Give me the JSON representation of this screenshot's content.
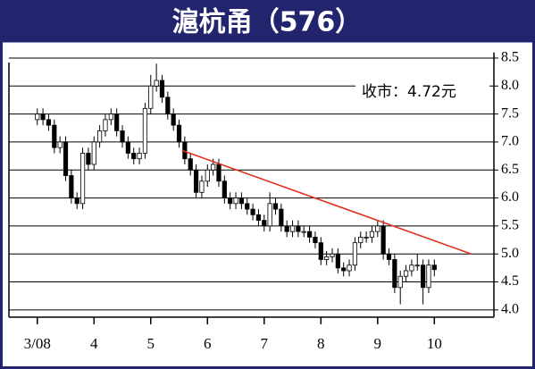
{
  "chart_data": {
    "type": "candlestick",
    "title": "滬杭甬（576）",
    "annotation": "收市：4.72元",
    "x": [
      3,
      3.1,
      3.2,
      3.3,
      3.4,
      3.5,
      3.6,
      3.7,
      3.8,
      3.9,
      4,
      4.1,
      4.2,
      4.3,
      4.4,
      4.5,
      4.6,
      4.7,
      4.8,
      4.9,
      5,
      5.1,
      5.2,
      5.3,
      5.4,
      5.5,
      5.6,
      5.7,
      5.8,
      5.9,
      6,
      6.1,
      6.2,
      6.3,
      6.4,
      6.5,
      6.6,
      6.7,
      6.8,
      6.9,
      7,
      7.1,
      7.2,
      7.3,
      7.4,
      7.5,
      7.6,
      7.7,
      7.8,
      7.9,
      8,
      8.1,
      8.2,
      8.3,
      8.4,
      8.5,
      8.6,
      8.7,
      8.8,
      8.9,
      9,
      9.1,
      9.2,
      9.3,
      9.4,
      9.5,
      9.6,
      9.7,
      9.8,
      9.9,
      10
    ],
    "ohlc": [
      [
        7.4,
        7.6,
        7.3,
        7.5
      ],
      [
        7.5,
        7.6,
        7.3,
        7.4
      ],
      [
        7.4,
        7.5,
        7.2,
        7.3
      ],
      [
        7.3,
        7.4,
        6.8,
        6.9
      ],
      [
        6.9,
        7.1,
        6.8,
        7.0
      ],
      [
        7.0,
        7.1,
        6.3,
        6.4
      ],
      [
        6.4,
        6.5,
        5.9,
        6.0
      ],
      [
        6.0,
        6.1,
        5.8,
        5.9
      ],
      [
        5.9,
        6.9,
        5.8,
        6.8
      ],
      [
        6.8,
        6.9,
        6.5,
        6.6
      ],
      [
        6.6,
        7.1,
        6.5,
        7.0
      ],
      [
        7.0,
        7.3,
        6.9,
        7.2
      ],
      [
        7.2,
        7.5,
        7.1,
        7.4
      ],
      [
        7.4,
        7.6,
        7.3,
        7.5
      ],
      [
        7.5,
        7.6,
        7.1,
        7.2
      ],
      [
        7.2,
        7.3,
        6.9,
        7.0
      ],
      [
        7.0,
        7.1,
        6.7,
        6.8
      ],
      [
        6.8,
        6.9,
        6.6,
        6.7
      ],
      [
        6.7,
        6.9,
        6.6,
        6.8
      ],
      [
        6.8,
        7.7,
        6.7,
        7.6
      ],
      [
        7.6,
        8.2,
        7.5,
        8.0
      ],
      [
        8.0,
        8.4,
        7.9,
        8.1
      ],
      [
        8.1,
        8.2,
        7.7,
        7.8
      ],
      [
        7.8,
        7.9,
        7.4,
        7.5
      ],
      [
        7.5,
        7.6,
        7.2,
        7.3
      ],
      [
        7.3,
        7.4,
        6.9,
        7.0
      ],
      [
        7.0,
        7.1,
        6.6,
        6.7
      ],
      [
        6.7,
        6.8,
        6.4,
        6.5
      ],
      [
        6.5,
        6.6,
        6.0,
        6.1
      ],
      [
        6.1,
        6.4,
        6.0,
        6.3
      ],
      [
        6.3,
        6.6,
        6.2,
        6.5
      ],
      [
        6.5,
        6.7,
        6.4,
        6.6
      ],
      [
        6.6,
        6.7,
        6.2,
        6.3
      ],
      [
        6.3,
        6.4,
        5.9,
        6.0
      ],
      [
        6.0,
        6.1,
        5.8,
        5.9
      ],
      [
        5.9,
        6.1,
        5.8,
        6.0
      ],
      [
        6.0,
        6.1,
        5.8,
        5.9
      ],
      [
        5.9,
        6.0,
        5.7,
        5.8
      ],
      [
        5.8,
        5.9,
        5.6,
        5.7
      ],
      [
        5.7,
        5.8,
        5.5,
        5.6
      ],
      [
        5.6,
        5.7,
        5.4,
        5.5
      ],
      [
        5.5,
        6.1,
        5.4,
        5.9
      ],
      [
        5.9,
        6.0,
        5.7,
        5.8
      ],
      [
        5.8,
        5.9,
        5.4,
        5.5
      ],
      [
        5.5,
        5.6,
        5.3,
        5.4
      ],
      [
        5.4,
        5.6,
        5.3,
        5.5
      ],
      [
        5.5,
        5.6,
        5.3,
        5.4
      ],
      [
        5.4,
        5.5,
        5.3,
        5.4
      ],
      [
        5.4,
        5.5,
        5.2,
        5.3
      ],
      [
        5.3,
        5.4,
        5.1,
        5.2
      ],
      [
        5.2,
        5.3,
        4.8,
        4.9
      ],
      [
        4.9,
        5.05,
        4.8,
        4.95
      ],
      [
        4.95,
        5.1,
        4.85,
        5.0
      ],
      [
        5.0,
        5.1,
        4.65,
        4.75
      ],
      [
        4.75,
        4.85,
        4.6,
        4.7
      ],
      [
        4.7,
        4.9,
        4.6,
        4.8
      ],
      [
        4.8,
        5.3,
        4.7,
        5.2
      ],
      [
        5.2,
        5.4,
        5.1,
        5.3
      ],
      [
        5.3,
        5.4,
        5.2,
        5.3
      ],
      [
        5.3,
        5.5,
        5.2,
        5.4
      ],
      [
        5.4,
        5.6,
        5.3,
        5.5
      ],
      [
        5.5,
        5.6,
        4.9,
        5.0
      ],
      [
        5.0,
        5.1,
        4.8,
        4.9
      ],
      [
        4.9,
        5.0,
        4.3,
        4.4
      ],
      [
        4.4,
        4.7,
        4.1,
        4.6
      ],
      [
        4.6,
        4.8,
        4.5,
        4.7
      ],
      [
        4.7,
        4.9,
        4.6,
        4.8
      ],
      [
        4.8,
        5.0,
        4.7,
        4.8
      ],
      [
        4.8,
        4.9,
        4.1,
        4.4
      ],
      [
        4.4,
        4.9,
        4.3,
        4.8
      ],
      [
        4.8,
        4.9,
        4.6,
        4.72
      ]
    ],
    "up_color": "#ffffff",
    "down_color": "#000000",
    "trendline": {
      "color": "#e0301e",
      "x": [
        5.55,
        10.65
      ],
      "y": [
        6.85,
        5.0
      ]
    },
    "xlim": [
      2.5,
      11.05
    ],
    "xticks": [
      {
        "value": 3,
        "label": "3/08"
      },
      4,
      5,
      6,
      7,
      8,
      9,
      10
    ],
    "ylim": [
      3.87,
      8.6
    ],
    "yticks": [
      {
        "value": 4,
        "label": "4.0"
      },
      4.5,
      {
        "value": 5,
        "label": "5.0"
      },
      5.5,
      {
        "value": 6,
        "label": "6.0"
      },
      6.5,
      {
        "value": 7,
        "label": "7.0"
      },
      7.5,
      {
        "value": 8,
        "label": "8.0"
      },
      8.5
    ],
    "grid": true
  }
}
